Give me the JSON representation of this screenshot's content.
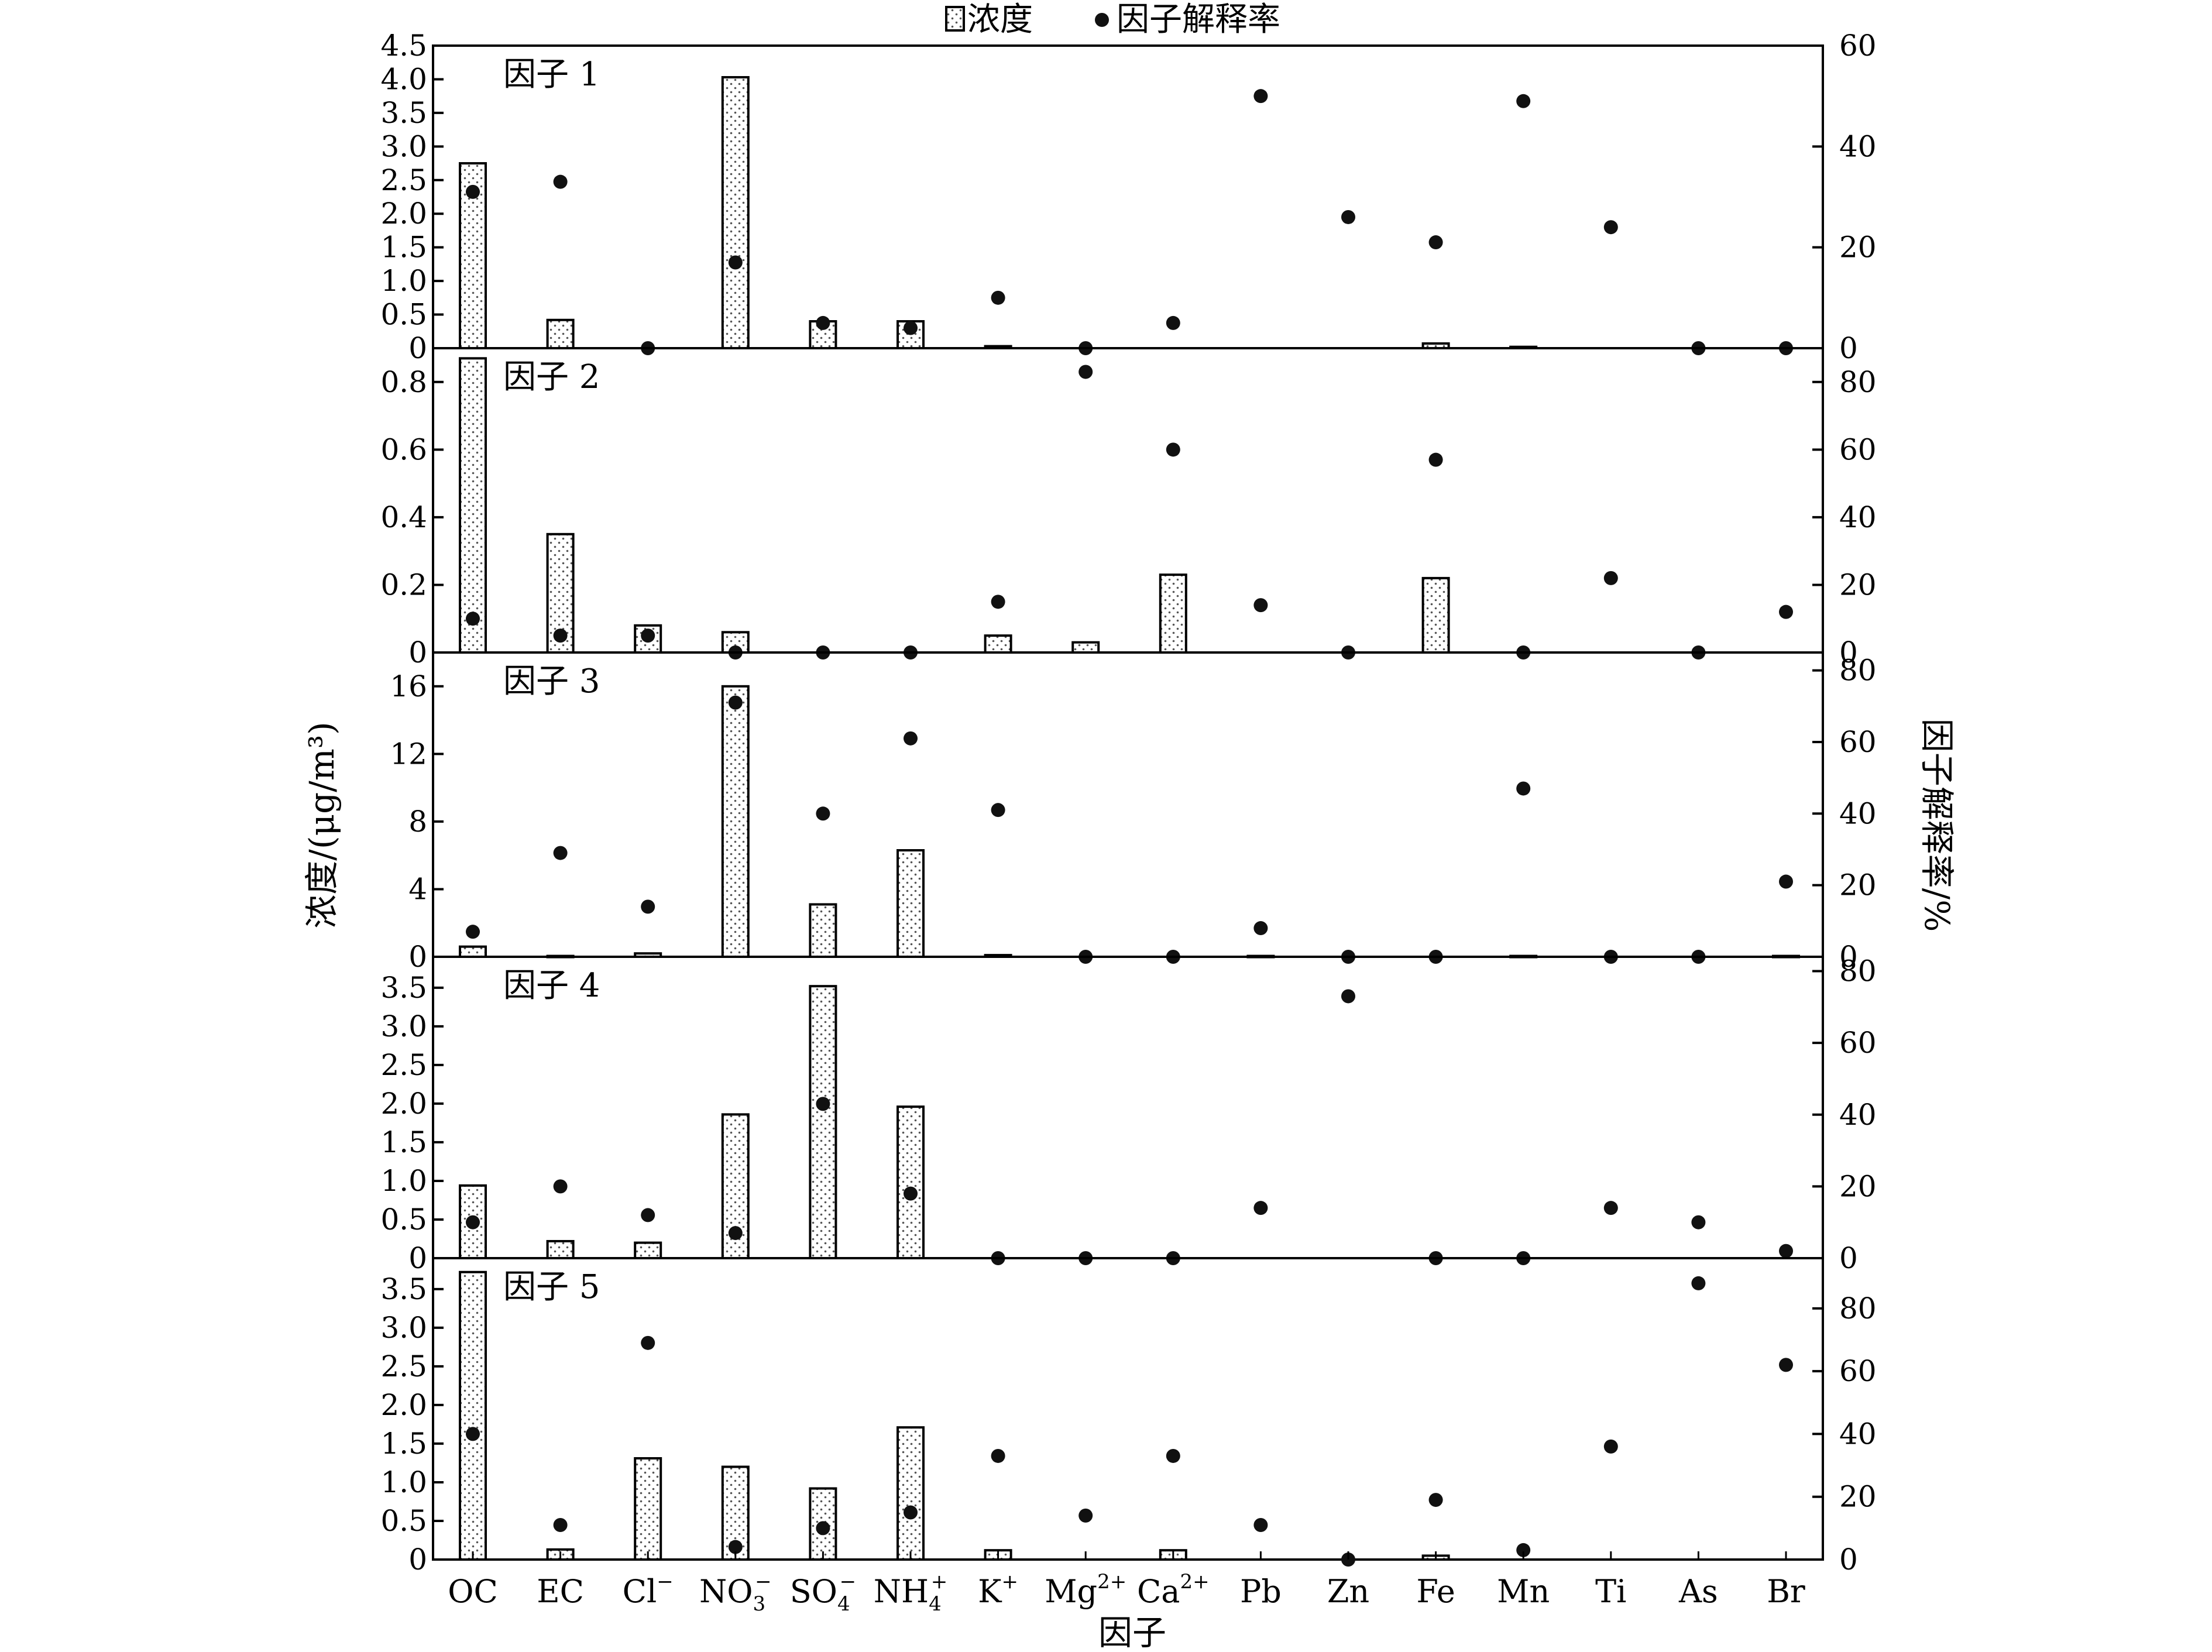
{
  "legend": {
    "bar_label": "浓度",
    "dot_label": "因子解释率"
  },
  "axes": {
    "xlabel": "因子",
    "ylabel_left": "浓度/(μg/m³)",
    "ylabel_right": "因子解释率/%"
  },
  "categories": [
    {
      "base": "OC"
    },
    {
      "base": "EC"
    },
    {
      "base": "Cl",
      "sup": "−"
    },
    {
      "base": "NO",
      "sub": "3",
      "sup": "−"
    },
    {
      "base": "SO",
      "sub": "4",
      "sup": "−"
    },
    {
      "base": "NH",
      "sub": "4",
      "sup": "+"
    },
    {
      "base": "K",
      "sup": "+"
    },
    {
      "base": "Mg",
      "sup": "2+"
    },
    {
      "base": "Ca",
      "sup": "2+"
    },
    {
      "base": "Pb"
    },
    {
      "base": "Zn"
    },
    {
      "base": "Fe"
    },
    {
      "base": "Mn"
    },
    {
      "base": "Ti"
    },
    {
      "base": "As"
    },
    {
      "base": "Br"
    }
  ],
  "colors": {
    "bar_outline": "#000000",
    "bar_fill": "#ffffff",
    "bar_dots": "#555555",
    "dot_fill": "#111111"
  },
  "chart_data": {
    "type": "bar",
    "categories": [
      "OC",
      "EC",
      "Cl⁻",
      "NO₃⁻",
      "SO₄⁻",
      "NH₄⁺",
      "K⁺",
      "Mg²⁺",
      "Ca²⁺",
      "Pb",
      "Zn",
      "Fe",
      "Mn",
      "Ti",
      "As",
      "Br"
    ],
    "xlabel": "因子",
    "ylabel": "浓度/(μg/m³)",
    "ylabel_right": "因子解释率/%",
    "legend": [
      "浓度",
      "因子解释率"
    ],
    "legend_position": "top-center",
    "grid": false,
    "panels": [
      {
        "label": "因子 1",
        "ylim": [
          0,
          4.5
        ],
        "yticks": [
          "0",
          "0.5",
          "1.0",
          "1.5",
          "2.0",
          "2.5",
          "3.0",
          "3.5",
          "4.0",
          "4.5"
        ],
        "ylim_right": [
          0,
          60
        ],
        "yticks_right": [
          "0",
          "20",
          "40",
          "60"
        ],
        "concentration": [
          2.75,
          0.42,
          0,
          4.03,
          0.4,
          0.4,
          0.03,
          0,
          0,
          0,
          0,
          0.07,
          0.02,
          0,
          0,
          0
        ],
        "explained_variance": [
          31,
          33,
          0,
          17,
          5,
          4,
          10,
          0,
          5,
          50,
          26,
          21,
          49,
          24,
          0,
          0
        ]
      },
      {
        "label": "因子 2",
        "ylim": [
          0,
          0.9
        ],
        "yticks": [
          "0",
          "0.2",
          "0.4",
          "0.6",
          "0.8"
        ],
        "ylim_right": [
          0,
          90
        ],
        "yticks_right": [
          "0",
          "20",
          "40",
          "60",
          "80"
        ],
        "concentration": [
          0.87,
          0.35,
          0.08,
          0.06,
          0,
          0,
          0.05,
          0.03,
          0.23,
          0,
          0,
          0.22,
          0,
          0,
          0,
          0
        ],
        "explained_variance": [
          10,
          5,
          5,
          0,
          0,
          0,
          15,
          83,
          60,
          14,
          0,
          57,
          0,
          22,
          0,
          12
        ]
      },
      {
        "label": "因子 3",
        "ylim": [
          0,
          18
        ],
        "yticks": [
          "0",
          "4",
          "8",
          "12",
          "16"
        ],
        "ylim_right": [
          0,
          85
        ],
        "yticks_right": [
          "0",
          "20",
          "40",
          "60",
          "80"
        ],
        "concentration": [
          0.6,
          0.05,
          0.2,
          16.0,
          3.1,
          6.3,
          0.1,
          0,
          0,
          0.05,
          0,
          0,
          0.05,
          0,
          0,
          0.05
        ],
        "explained_variance": [
          7,
          29,
          14,
          71,
          40,
          61,
          41,
          0,
          0,
          8,
          0,
          0,
          47,
          0,
          0,
          21
        ]
      },
      {
        "label": "因子 4",
        "ylim": [
          0,
          3.9
        ],
        "yticks": [
          "0",
          "0.5",
          "1.0",
          "1.5",
          "2.0",
          "2.5",
          "3.0",
          "3.5"
        ],
        "ylim_right": [
          0,
          84
        ],
        "yticks_right": [
          "0",
          "20",
          "40",
          "60",
          "80"
        ],
        "concentration": [
          0.94,
          0.22,
          0.2,
          1.86,
          3.52,
          1.96,
          0,
          0,
          0,
          0,
          0,
          0,
          0,
          0,
          0,
          0
        ],
        "explained_variance": [
          10,
          20,
          12,
          7,
          43,
          18,
          0,
          0,
          0,
          14,
          73,
          0,
          0,
          14,
          10,
          2
        ]
      },
      {
        "label": "因子 5",
        "ylim": [
          0,
          3.9
        ],
        "yticks": [
          "0",
          "0.5",
          "1.0",
          "1.5",
          "2.0",
          "2.5",
          "3.0",
          "3.5"
        ],
        "ylim_right": [
          0,
          96
        ],
        "yticks_right": [
          "0",
          "20",
          "40",
          "60",
          "80"
        ],
        "concentration": [
          3.72,
          0.13,
          1.31,
          1.2,
          0.92,
          1.71,
          0.12,
          0,
          0.12,
          0,
          0,
          0.05,
          0,
          0,
          0,
          0
        ],
        "explained_variance": [
          40,
          11,
          69,
          4,
          10,
          15,
          33,
          14,
          33,
          11,
          0,
          19,
          3,
          36,
          88,
          62
        ]
      }
    ]
  }
}
